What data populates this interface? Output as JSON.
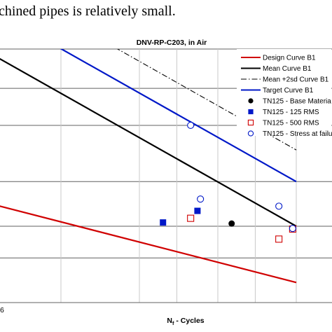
{
  "header_text": "chined pipes is relatively small.",
  "chart_data": {
    "type": "line",
    "title": "DNV-RP-C203, in Air",
    "xlabel_main": "N",
    "xlabel_sub": "f",
    "xlabel_rest": " - Cycles",
    "x_tick_fragment": "6",
    "xscale": "log",
    "yscale": "log",
    "xlim": [
      1000,
      100000000
    ],
    "ylim": [
      100,
      1000
    ],
    "grid": true,
    "legend_position": "top-right",
    "series": [
      {
        "name": "Design Curve B1",
        "kind": "line",
        "color": "#d00000",
        "dash": "solid",
        "points": [
          [
            1000,
            250
          ],
          [
            10000000,
            120
          ]
        ]
      },
      {
        "name": "Mean Curve B1",
        "kind": "line",
        "color": "#000000",
        "dash": "solid",
        "points": [
          [
            1000,
            1000
          ],
          [
            10000000,
            200
          ]
        ]
      },
      {
        "name": "Mean +2sd Curve B1",
        "kind": "line",
        "color": "#000000",
        "dash": "dashdot",
        "points": [
          [
            1000,
            2000
          ],
          [
            10000000,
            400
          ]
        ]
      },
      {
        "name": "Target Curve B1",
        "kind": "line",
        "color": "#0018c8",
        "dash": "solid",
        "points": [
          [
            1000,
            1500
          ],
          [
            10000000,
            300
          ]
        ]
      },
      {
        "name": "TN125 - Base Materia",
        "kind": "scatter",
        "marker": "filled-circle",
        "color": "#000000",
        "points": [
          [
            1500000,
            205
          ]
        ]
      },
      {
        "name": "TN125 - 125 RMS",
        "kind": "scatter",
        "marker": "filled-square",
        "color": "#0018c8",
        "points": [
          [
            200000,
            207
          ],
          [
            550000,
            230
          ]
        ]
      },
      {
        "name": "TN125 - 500 RMS",
        "kind": "scatter",
        "marker": "open-square",
        "color": "#d00000",
        "points": [
          [
            450000,
            215
          ],
          [
            6000000,
            178
          ],
          [
            9000000,
            195
          ]
        ]
      },
      {
        "name": "TN125 - Stress at failu",
        "kind": "scatter",
        "marker": "open-circle",
        "color": "#0018c8",
        "points": [
          [
            450000,
            500
          ],
          [
            600000,
            256
          ],
          [
            6000000,
            240
          ],
          [
            9000000,
            196
          ]
        ]
      }
    ]
  }
}
